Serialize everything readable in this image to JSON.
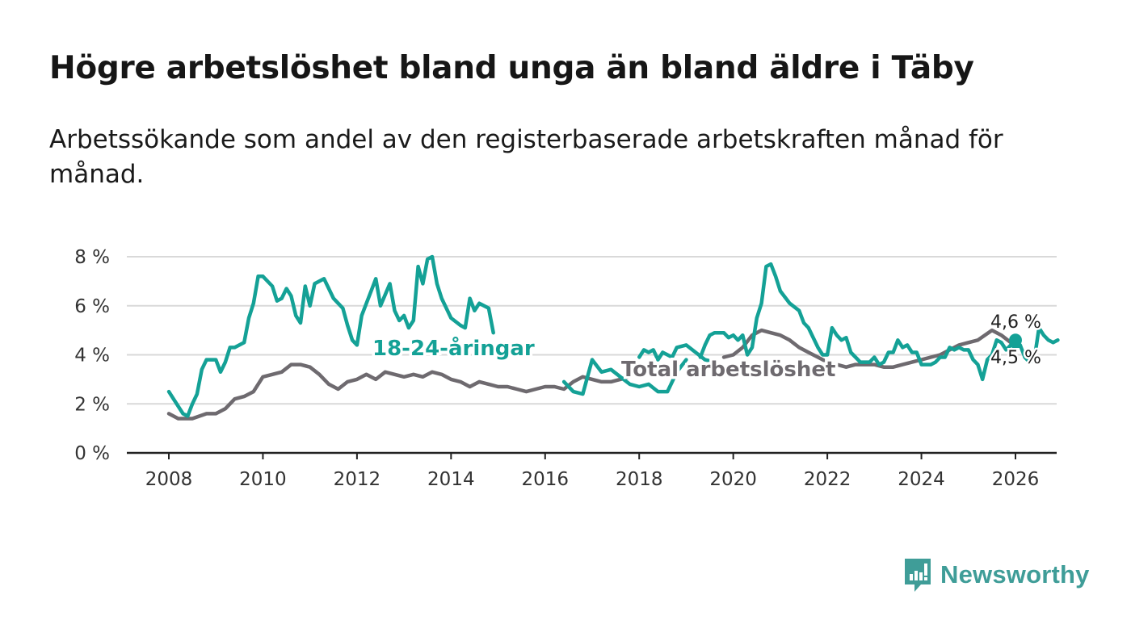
{
  "title": "Högre arbetslöshet bland unga än bland äldre i Täby",
  "subtitle": "Arbetssökande som andel av den registerbaserade arbetskraften månad för månad.",
  "brand": {
    "name": "Newsworthy",
    "color": "#3f9d98",
    "icon": "newsworthy-logo-icon"
  },
  "chart_data": {
    "type": "line",
    "title": "Högre arbetslöshet bland unga än bland äldre i Täby",
    "xlabel": "",
    "ylabel": "",
    "xlim": [
      2007.6,
      2026.9
    ],
    "ylim": [
      0,
      8
    ],
    "x_ticks": [
      2008,
      2010,
      2012,
      2014,
      2016,
      2018,
      2020,
      2022,
      2024,
      2026
    ],
    "x_tick_labels": [
      "2008",
      "2010",
      "2012",
      "2014",
      "2016",
      "2018",
      "2020",
      "2022",
      "2024",
      "2026"
    ],
    "y_ticks": [
      0,
      2,
      4,
      6,
      8
    ],
    "y_tick_labels": [
      "0 %",
      "2 %",
      "4 %",
      "6 %",
      "8 %"
    ],
    "grid": true,
    "series": [
      {
        "name": "Total arbetslöshet",
        "label": "Total arbetslöshet",
        "color": "#6e6a6f",
        "end_label": "4,5 %",
        "points": [
          [
            2008.0,
            1.6
          ],
          [
            2008.2,
            1.4
          ],
          [
            2008.5,
            1.4
          ],
          [
            2008.8,
            1.6
          ],
          [
            2009.0,
            1.6
          ],
          [
            2009.2,
            1.8
          ],
          [
            2009.4,
            2.2
          ],
          [
            2009.6,
            2.3
          ],
          [
            2009.8,
            2.5
          ],
          [
            2010.0,
            3.1
          ],
          [
            2010.2,
            3.2
          ],
          [
            2010.4,
            3.3
          ],
          [
            2010.6,
            3.6
          ],
          [
            2010.8,
            3.6
          ],
          [
            2011.0,
            3.5
          ],
          [
            2011.2,
            3.2
          ],
          [
            2011.4,
            2.8
          ],
          [
            2011.6,
            2.6
          ],
          [
            2011.8,
            2.9
          ],
          [
            2012.0,
            3.0
          ],
          [
            2012.2,
            3.2
          ],
          [
            2012.4,
            3.0
          ],
          [
            2012.6,
            3.3
          ],
          [
            2012.8,
            3.2
          ],
          [
            2013.0,
            3.1
          ],
          [
            2013.2,
            3.2
          ],
          [
            2013.4,
            3.1
          ],
          [
            2013.6,
            3.3
          ],
          [
            2013.8,
            3.2
          ],
          [
            2014.0,
            3.0
          ],
          [
            2014.2,
            2.9
          ],
          [
            2014.4,
            2.7
          ],
          [
            2014.6,
            2.9
          ],
          [
            2014.8,
            2.8
          ],
          [
            2015.0,
            2.7
          ],
          [
            2015.2,
            2.7
          ],
          [
            2015.4,
            2.6
          ],
          [
            2015.6,
            2.5
          ],
          [
            2015.8,
            2.6
          ],
          [
            2016.0,
            2.7
          ],
          [
            2016.2,
            2.7
          ],
          [
            2016.4,
            2.6
          ],
          [
            2016.6,
            2.9
          ],
          [
            2016.8,
            3.1
          ],
          [
            2017.0,
            3.0
          ],
          [
            2017.2,
            2.9
          ],
          [
            2017.4,
            2.9
          ],
          [
            2017.6,
            3.0
          ],
          [
            2017.8,
            3.1
          ]
        ],
        "points_2": [
          [
            2019.8,
            3.9
          ],
          [
            2020.0,
            4.0
          ],
          [
            2020.2,
            4.3
          ],
          [
            2020.4,
            4.8
          ],
          [
            2020.6,
            5.0
          ],
          [
            2020.8,
            4.9
          ],
          [
            2021.0,
            4.8
          ],
          [
            2021.2,
            4.6
          ],
          [
            2021.4,
            4.3
          ],
          [
            2021.6,
            4.1
          ],
          [
            2021.8,
            3.9
          ],
          [
            2022.0,
            3.7
          ],
          [
            2022.2,
            3.6
          ],
          [
            2022.4,
            3.5
          ],
          [
            2022.6,
            3.6
          ],
          [
            2022.8,
            3.6
          ],
          [
            2023.0,
            3.6
          ],
          [
            2023.2,
            3.5
          ],
          [
            2023.4,
            3.5
          ],
          [
            2023.6,
            3.6
          ],
          [
            2023.8,
            3.7
          ],
          [
            2024.0,
            3.8
          ],
          [
            2024.2,
            3.9
          ],
          [
            2024.4,
            4.0
          ],
          [
            2024.6,
            4.2
          ],
          [
            2024.8,
            4.4
          ],
          [
            2025.0,
            4.5
          ],
          [
            2025.2,
            4.6
          ],
          [
            2025.5,
            5.0
          ],
          [
            2025.7,
            4.8
          ],
          [
            2025.9,
            4.5
          ],
          [
            2026.0,
            4.5
          ]
        ]
      },
      {
        "name": "18-24-åringar",
        "label": "18-24-åringar",
        "color": "#14a196",
        "end_label": "4,6 %",
        "points": [
          [
            2008.0,
            2.5
          ],
          [
            2008.1,
            2.2
          ],
          [
            2008.3,
            1.6
          ],
          [
            2008.4,
            1.5
          ],
          [
            2008.5,
            2.0
          ],
          [
            2008.6,
            2.4
          ],
          [
            2008.7,
            3.4
          ],
          [
            2008.8,
            3.8
          ],
          [
            2009.0,
            3.8
          ],
          [
            2009.1,
            3.3
          ],
          [
            2009.2,
            3.7
          ],
          [
            2009.3,
            4.3
          ],
          [
            2009.4,
            4.3
          ],
          [
            2009.6,
            4.5
          ],
          [
            2009.7,
            5.5
          ],
          [
            2009.8,
            6.1
          ],
          [
            2009.9,
            7.2
          ],
          [
            2010.0,
            7.2
          ],
          [
            2010.2,
            6.8
          ],
          [
            2010.3,
            6.2
          ],
          [
            2010.4,
            6.3
          ],
          [
            2010.5,
            6.7
          ],
          [
            2010.6,
            6.4
          ],
          [
            2010.7,
            5.6
          ],
          [
            2010.8,
            5.3
          ],
          [
            2010.9,
            6.8
          ],
          [
            2011.0,
            6.0
          ],
          [
            2011.1,
            6.9
          ],
          [
            2011.3,
            7.1
          ],
          [
            2011.4,
            6.7
          ],
          [
            2011.5,
            6.3
          ],
          [
            2011.7,
            5.9
          ],
          [
            2011.8,
            5.2
          ],
          [
            2011.9,
            4.6
          ],
          [
            2012.0,
            4.4
          ],
          [
            2012.1,
            5.6
          ],
          [
            2012.3,
            6.6
          ],
          [
            2012.4,
            7.1
          ],
          [
            2012.5,
            6.0
          ],
          [
            2012.7,
            6.9
          ],
          [
            2012.8,
            5.8
          ],
          [
            2012.9,
            5.4
          ],
          [
            2013.0,
            5.6
          ],
          [
            2013.1,
            5.1
          ],
          [
            2013.2,
            5.4
          ],
          [
            2013.3,
            7.6
          ],
          [
            2013.4,
            6.9
          ],
          [
            2013.5,
            7.9
          ],
          [
            2013.6,
            8.0
          ],
          [
            2013.7,
            6.9
          ],
          [
            2013.8,
            6.3
          ],
          [
            2014.0,
            5.5
          ],
          [
            2014.2,
            5.2
          ],
          [
            2014.3,
            5.1
          ],
          [
            2014.4,
            6.3
          ],
          [
            2014.5,
            5.8
          ],
          [
            2014.6,
            6.1
          ],
          [
            2014.8,
            5.9
          ],
          [
            2014.9,
            4.9
          ]
        ],
        "points_2": [
          [
            2016.4,
            2.9
          ],
          [
            2016.6,
            2.5
          ],
          [
            2016.8,
            2.4
          ],
          [
            2017.0,
            3.8
          ],
          [
            2017.2,
            3.3
          ],
          [
            2017.4,
            3.4
          ],
          [
            2017.6,
            3.1
          ],
          [
            2017.8,
            2.8
          ],
          [
            2018.0,
            2.7
          ],
          [
            2018.2,
            2.8
          ],
          [
            2018.4,
            2.5
          ],
          [
            2018.6,
            2.5
          ],
          [
            2018.8,
            3.3
          ],
          [
            2019.0,
            3.8
          ]
        ],
        "points_3": [
          [
            2018.0,
            3.9
          ],
          [
            2018.1,
            4.2
          ],
          [
            2018.2,
            4.1
          ],
          [
            2018.3,
            4.2
          ],
          [
            2018.4,
            3.8
          ],
          [
            2018.5,
            4.1
          ],
          [
            2018.6,
            4.0
          ],
          [
            2018.7,
            3.9
          ],
          [
            2018.8,
            4.3
          ],
          [
            2019.0,
            4.4
          ],
          [
            2019.2,
            4.1
          ],
          [
            2019.4,
            3.8
          ],
          [
            2019.6,
            3.7
          ]
        ],
        "points_4": [
          [
            2019.3,
            3.9
          ],
          [
            2019.4,
            4.4
          ],
          [
            2019.5,
            4.8
          ],
          [
            2019.6,
            4.9
          ],
          [
            2019.8,
            4.9
          ],
          [
            2019.9,
            4.7
          ],
          [
            2020.0,
            4.8
          ],
          [
            2020.1,
            4.6
          ],
          [
            2020.2,
            4.8
          ],
          [
            2020.3,
            4.0
          ],
          [
            2020.4,
            4.3
          ],
          [
            2020.5,
            5.5
          ],
          [
            2020.6,
            6.1
          ],
          [
            2020.7,
            7.6
          ],
          [
            2020.8,
            7.7
          ],
          [
            2020.9,
            7.2
          ],
          [
            2021.0,
            6.6
          ],
          [
            2021.2,
            6.1
          ],
          [
            2021.4,
            5.8
          ],
          [
            2021.5,
            5.3
          ],
          [
            2021.6,
            5.1
          ],
          [
            2021.7,
            4.7
          ],
          [
            2021.8,
            4.3
          ],
          [
            2021.9,
            4.0
          ],
          [
            2022.0,
            4.0
          ],
          [
            2022.1,
            5.1
          ],
          [
            2022.2,
            4.8
          ],
          [
            2022.3,
            4.6
          ],
          [
            2022.4,
            4.7
          ],
          [
            2022.5,
            4.1
          ],
          [
            2022.6,
            3.9
          ],
          [
            2022.7,
            3.7
          ],
          [
            2022.9,
            3.7
          ],
          [
            2023.0,
            3.9
          ],
          [
            2023.1,
            3.6
          ],
          [
            2023.2,
            3.7
          ],
          [
            2023.3,
            4.1
          ],
          [
            2023.4,
            4.1
          ],
          [
            2023.5,
            4.6
          ],
          [
            2023.6,
            4.3
          ],
          [
            2023.7,
            4.4
          ],
          [
            2023.8,
            4.1
          ],
          [
            2023.9,
            4.1
          ],
          [
            2024.0,
            3.6
          ],
          [
            2024.2,
            3.6
          ],
          [
            2024.3,
            3.7
          ],
          [
            2024.4,
            3.9
          ],
          [
            2024.5,
            3.9
          ],
          [
            2024.6,
            4.3
          ],
          [
            2024.7,
            4.2
          ],
          [
            2024.8,
            4.3
          ],
          [
            2024.9,
            4.2
          ],
          [
            2025.0,
            4.2
          ],
          [
            2025.1,
            3.8
          ],
          [
            2025.2,
            3.6
          ],
          [
            2025.3,
            3.0
          ],
          [
            2025.4,
            3.8
          ],
          [
            2025.5,
            4.0
          ],
          [
            2025.6,
            4.6
          ],
          [
            2025.7,
            4.5
          ],
          [
            2025.8,
            4.2
          ],
          [
            2025.9,
            4.4
          ],
          [
            2026.0,
            4.3
          ],
          [
            2026.1,
            4.4
          ],
          [
            2026.2,
            3.9
          ],
          [
            2026.3,
            3.7
          ],
          [
            2026.4,
            3.8
          ],
          [
            2026.5,
            5.1
          ],
          [
            2026.6,
            4.8
          ],
          [
            2026.7,
            4.6
          ],
          [
            2026.8,
            4.5
          ],
          [
            2026.9,
            4.6
          ]
        ],
        "points_5": []
      }
    ]
  }
}
